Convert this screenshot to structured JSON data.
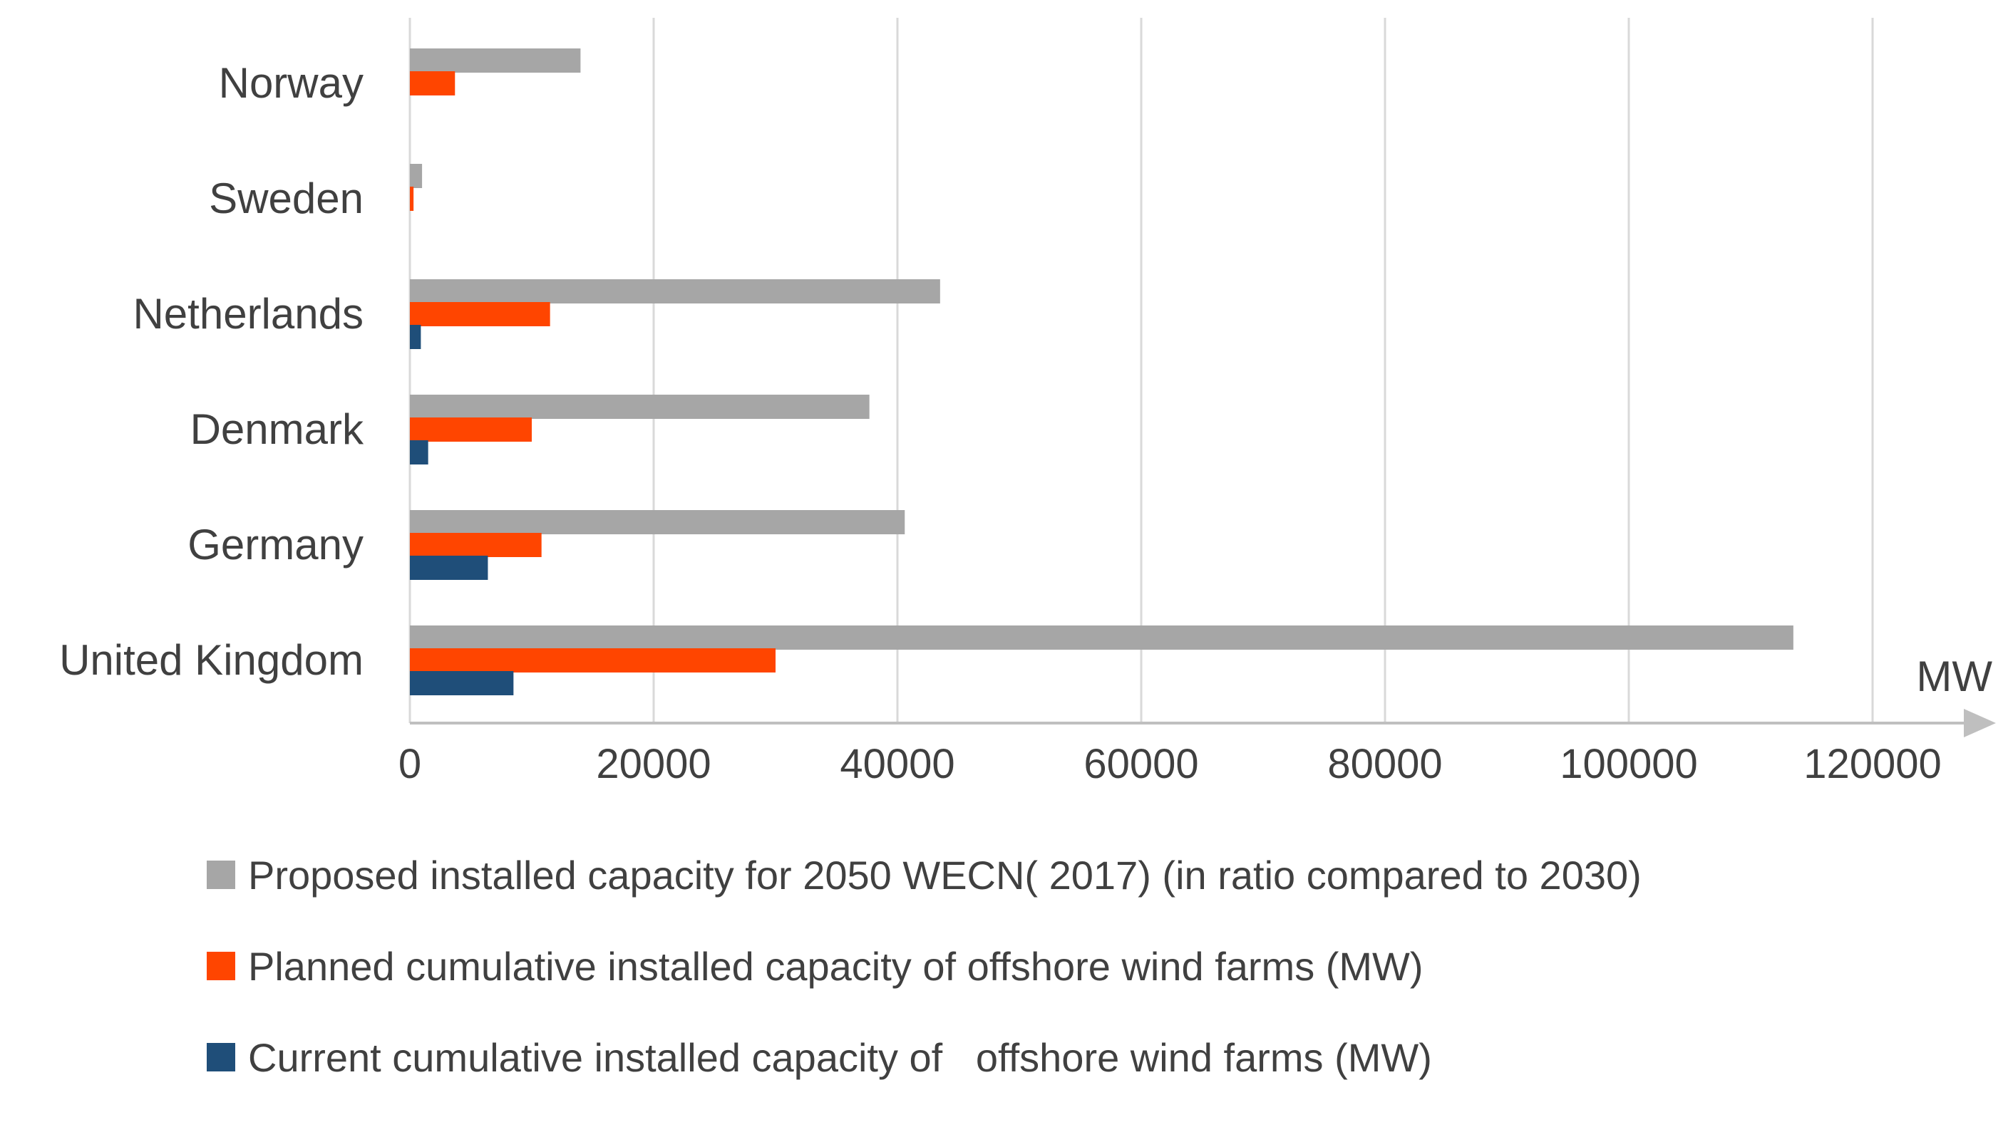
{
  "chart_data": {
    "type": "bar",
    "orientation": "horizontal",
    "categories": [
      "Norway",
      "Sweden",
      "Netherlands",
      "Denmark",
      "Germany",
      "United Kingdom"
    ],
    "series": [
      {
        "name": "Proposed installed capacity for 2050 WECN( 2017) (in ratio compared to 2030)",
        "color": "#a6a6a6",
        "values": [
          14000,
          1000,
          43500,
          37700,
          40600,
          113500
        ]
      },
      {
        "name": "Planned cumulative installed capacity of offshore wind farms (MW)",
        "color": "#ff4500",
        "values": [
          3700,
          300,
          11500,
          10000,
          10800,
          30000
        ]
      },
      {
        "name": "Current cumulative installed capacity of   offshore wind farms (MW)",
        "color": "#1f4e79",
        "values": [
          0,
          0,
          900,
          1500,
          6400,
          8500
        ]
      }
    ],
    "x_ticks": [
      "0",
      "20000",
      "40000",
      "60000",
      "80000",
      "100000",
      "120000"
    ],
    "xlim": [
      0,
      120000
    ],
    "x_unit_label": "MW",
    "grid": "vertical",
    "legend_position": "bottom"
  }
}
